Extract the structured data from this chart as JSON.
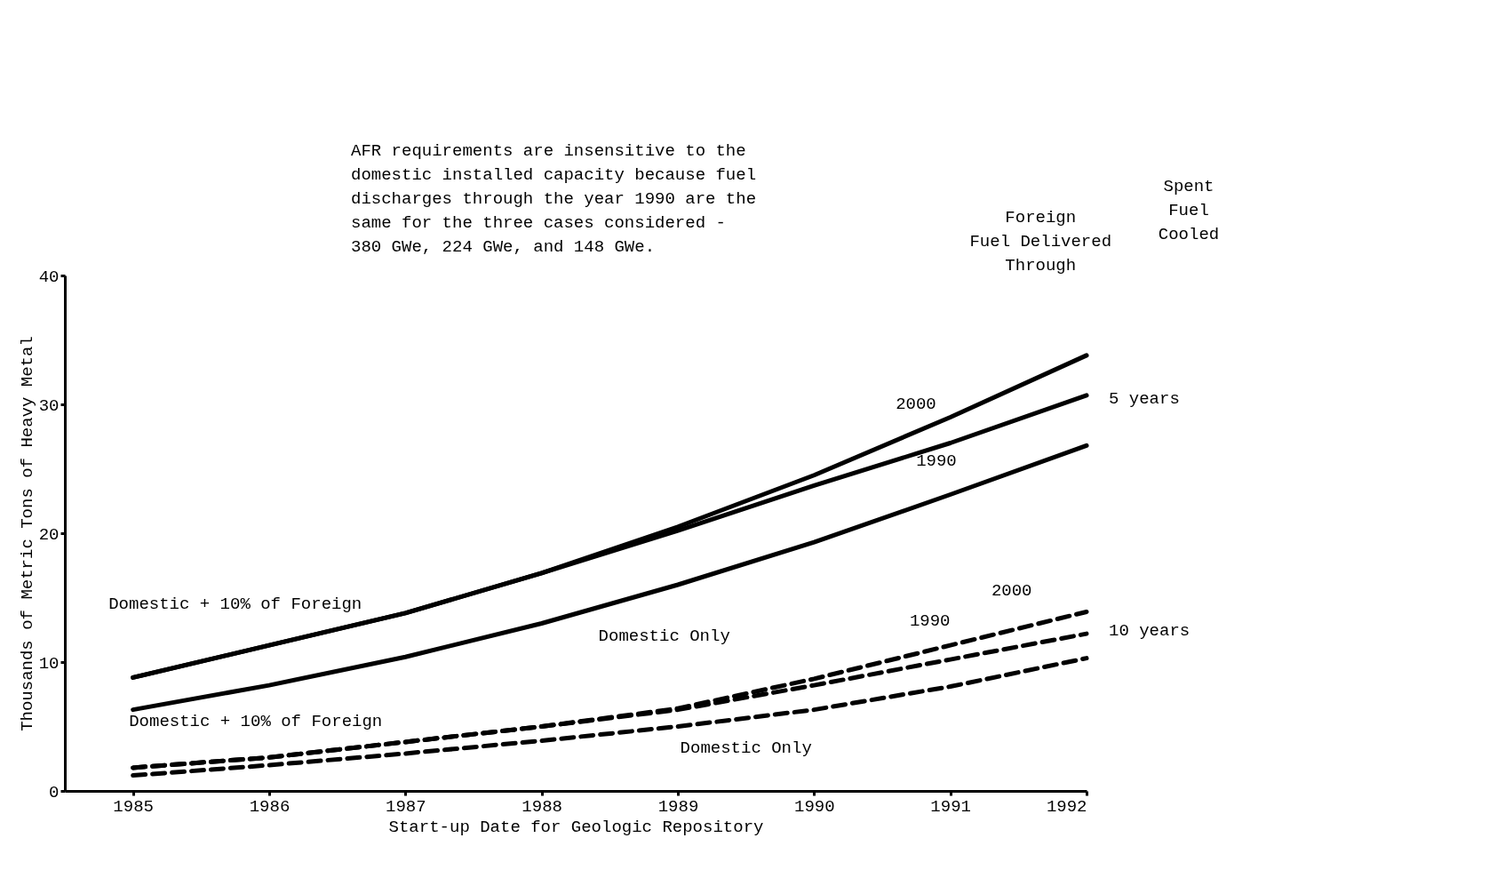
{
  "chart_data": {
    "type": "line",
    "xlabel": "Start-up Date for Geologic Repository",
    "ylabel": "Thousands of Metric Tons of Heavy Metal",
    "x": [
      1985,
      1986,
      1987,
      1988,
      1989,
      1990,
      1991,
      1992
    ],
    "xlim": [
      1984.5,
      1992
    ],
    "xticks": [
      1985,
      1986,
      1987,
      1988,
      1989,
      1990,
      1991,
      1992
    ],
    "ylim": [
      0,
      40
    ],
    "yticks": [
      0,
      10,
      20,
      30,
      40
    ],
    "grid": false,
    "marker": "none",
    "series": [
      {
        "color": "#000000",
        "line_style": "solid",
        "values": [
          8.8,
          11.3,
          13.8,
          16.9,
          20.5,
          24.5,
          29.0,
          33.8
        ]
      },
      {
        "color": "#000000",
        "line_style": "solid",
        "values": [
          8.8,
          11.3,
          13.8,
          16.9,
          20.2,
          23.7,
          27.0,
          30.7
        ]
      },
      {
        "color": "#000000",
        "line_style": "solid",
        "values": [
          6.3,
          8.2,
          10.4,
          13.0,
          16.0,
          19.3,
          23.0,
          26.8
        ]
      },
      {
        "color": "#000000",
        "line_style": "dashed",
        "values": [
          1.8,
          2.6,
          3.8,
          5.0,
          6.4,
          8.7,
          11.3,
          13.9
        ]
      },
      {
        "color": "#000000",
        "line_style": "dashed",
        "values": [
          1.8,
          2.6,
          3.8,
          5.0,
          6.3,
          8.2,
          10.2,
          12.2
        ]
      },
      {
        "color": "#000000",
        "line_style": "dashed",
        "values": [
          1.2,
          2.0,
          2.9,
          3.9,
          5.0,
          6.3,
          8.1,
          10.3
        ]
      }
    ],
    "annotations": [
      "AFR requirements are insensitive to the\ndomestic installed capacity because fuel\ndischarges through the year 1990 are the\nsame for the three cases considered -\n380 GWe, 224 GWe, and 148 GWe.",
      "Foreign\nFuel Delivered\nThrough",
      "Spent\nFuel\nCooled",
      "Domestic + 10% of Foreign",
      "Domestic Only",
      "2000",
      "1990",
      "Domestic + 10% of Foreign",
      "Domestic Only",
      "2000",
      "1990",
      {
        "text": "5 years",
        "x": 1992,
        "y": 30.5
      },
      {
        "text": "10 years",
        "x": 1992,
        "y": 12.5
      }
    ]
  }
}
